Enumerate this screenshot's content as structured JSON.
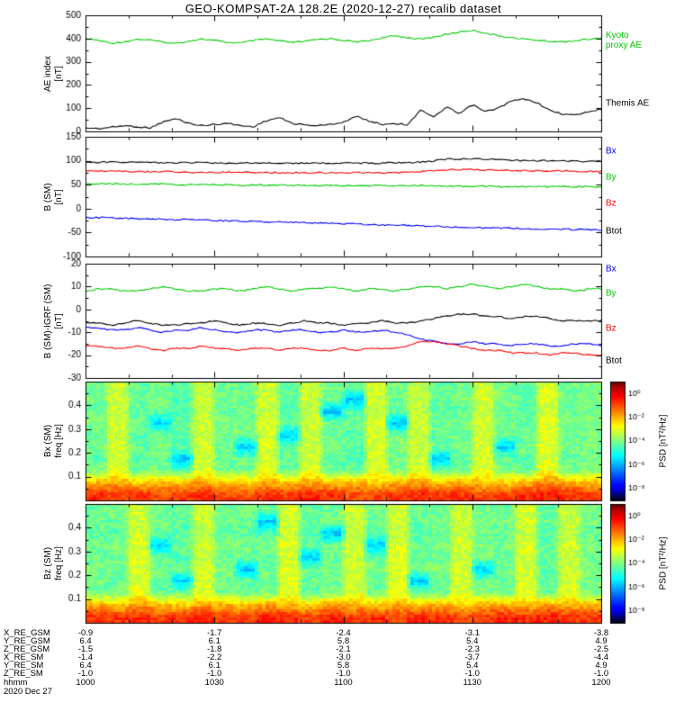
{
  "title": "GEO-KOMPSAT-2A 128.2E (2020-12-27) recalib dataset",
  "hhmm_label": "hhmm",
  "date_label": "2020 Dec 27",
  "time_ticks": [
    "1000",
    "1030",
    "1100",
    "1130",
    "1200"
  ],
  "coord_rows": [
    {
      "label": "X_RE_GSM",
      "values": [
        "-0.9",
        "-1.7",
        "-2.4",
        "-3.1",
        "-3.8"
      ]
    },
    {
      "label": "Y_RE_GSM",
      "values": [
        "6.4",
        "6.1",
        "5.8",
        "5.4",
        "4.9"
      ]
    },
    {
      "label": "Z_RE_GSM",
      "values": [
        "-1.5",
        "-1.8",
        "-2.1",
        "-2.3",
        "-2.5"
      ]
    },
    {
      "label": "X_RE_SM",
      "values": [
        "-1.4",
        "-2.2",
        "-3.0",
        "-3.7",
        "-4.4"
      ]
    },
    {
      "label": "Y_RE_SM",
      "values": [
        "6.4",
        "6.1",
        "5.8",
        "5.4",
        "4.9"
      ]
    },
    {
      "label": "Z_RE_SM",
      "values": [
        "-1.0",
        "-1.0",
        "-1.0",
        "-1.0",
        "-1.0"
      ]
    }
  ],
  "chart_data": [
    {
      "type": "line",
      "id": "ae-index",
      "ylabel_lines": [
        "AE index",
        "[nT]"
      ],
      "ylim": [
        0,
        500
      ],
      "yticks": [
        0,
        100,
        200,
        300,
        400,
        500
      ],
      "x_range_hhmm": [
        "1000",
        "1200"
      ],
      "series": [
        {
          "name": "Kyoto proxy AE",
          "label_lines": [
            "Kyoto",
            "proxy AE"
          ],
          "color": "#00cc00",
          "values": [
            400,
            392,
            380,
            386,
            397,
            394,
            384,
            379,
            389,
            398,
            392,
            383,
            381,
            391,
            398,
            390,
            383,
            387,
            396,
            400,
            392,
            385,
            391,
            403,
            412,
            404,
            397,
            406,
            418,
            428,
            436,
            424,
            412,
            404,
            398,
            393,
            388,
            386,
            391,
            397,
            401
          ]
        },
        {
          "name": "Themis AE",
          "label_lines": [
            "Themis AE"
          ],
          "color": "#000000",
          "values": [
            15,
            12,
            18,
            25,
            20,
            15,
            40,
            55,
            35,
            25,
            30,
            35,
            25,
            20,
            45,
            60,
            35,
            28,
            25,
            30,
            40,
            65,
            45,
            30,
            35,
            28,
            95,
            60,
            105,
            75,
            115,
            85,
            100,
            130,
            140,
            125,
            90,
            75,
            70,
            85,
            95
          ]
        }
      ]
    },
    {
      "type": "line",
      "id": "b-sm",
      "ylabel_lines": [
        "B (SM)",
        "[nT]"
      ],
      "ylim": [
        -100,
        150
      ],
      "yticks": [
        -100,
        -50,
        0,
        50,
        100,
        150
      ],
      "series": [
        {
          "name": "Bx",
          "color": "#0000ff",
          "values": [
            -18,
            -19,
            -19,
            -20,
            -21,
            -21,
            -22,
            -23,
            -23,
            -24,
            -25,
            -25,
            -26,
            -27,
            -27,
            -28,
            -29,
            -29,
            -30,
            -31,
            -31,
            -32,
            -33,
            -34,
            -34,
            -35,
            -36,
            -37,
            -38,
            -38,
            -39,
            -40,
            -40,
            -41,
            -42,
            -42,
            -43,
            -43,
            -44,
            -44,
            -45
          ]
        },
        {
          "name": "By",
          "color": "#00cc00",
          "values": [
            52,
            52,
            52,
            51,
            51,
            51,
            51,
            50,
            50,
            50,
            50,
            50,
            49,
            49,
            49,
            49,
            49,
            49,
            48,
            48,
            48,
            48,
            48,
            48,
            48,
            48,
            48,
            47,
            47,
            47,
            47,
            47,
            46,
            46,
            46,
            46,
            46,
            46,
            46,
            46,
            46
          ]
        },
        {
          "name": "Bz",
          "color": "#ff0000",
          "values": [
            78,
            78,
            78,
            78,
            77,
            77,
            77,
            77,
            76,
            76,
            76,
            76,
            76,
            75,
            75,
            75,
            75,
            75,
            75,
            75,
            75,
            75,
            75,
            75,
            75,
            76,
            77,
            79,
            81,
            82,
            82,
            81,
            80,
            80,
            79,
            79,
            79,
            79,
            78,
            78,
            78
          ]
        },
        {
          "name": "Btot",
          "color": "#000000",
          "values": [
            97,
            97,
            97,
            97,
            97,
            96,
            96,
            96,
            96,
            96,
            95,
            95,
            95,
            95,
            95,
            95,
            95,
            95,
            95,
            95,
            95,
            95,
            95,
            95,
            96,
            96,
            97,
            100,
            103,
            104,
            104,
            103,
            102,
            101,
            100,
            100,
            100,
            100,
            99,
            99,
            99
          ]
        }
      ]
    },
    {
      "type": "line",
      "id": "b-sm-igrf",
      "ylabel_lines": [
        "B (SM)-IGRF (SM)",
        "[nT]"
      ],
      "ylim": [
        -30,
        20
      ],
      "yticks": [
        -30,
        -20,
        -10,
        0,
        10,
        20
      ],
      "series": [
        {
          "name": "Bx",
          "color": "#0000ff",
          "values": [
            -8,
            -8,
            -9,
            -9,
            -8,
            -9,
            -10,
            -9,
            -9,
            -8,
            -9,
            -10,
            -10,
            -9,
            -9,
            -10,
            -9,
            -9,
            -10,
            -10,
            -9,
            -10,
            -10,
            -9,
            -10,
            -11,
            -13,
            -14,
            -15,
            -15,
            -14,
            -15,
            -15,
            -16,
            -15,
            -15,
            -16,
            -16,
            -15,
            -15,
            -16
          ]
        },
        {
          "name": "By",
          "color": "#00cc00",
          "values": [
            8,
            9,
            9,
            8,
            8,
            9,
            10,
            9,
            8,
            8,
            9,
            9,
            8,
            9,
            10,
            9,
            8,
            9,
            9,
            10,
            9,
            8,
            9,
            9,
            8,
            9,
            10,
            10,
            9,
            10,
            11,
            10,
            9,
            10,
            11,
            10,
            9,
            9,
            8,
            9,
            9
          ]
        },
        {
          "name": "Bz",
          "color": "#ff0000",
          "values": [
            -16,
            -16,
            -17,
            -17,
            -16,
            -17,
            -18,
            -17,
            -17,
            -16,
            -17,
            -17,
            -18,
            -17,
            -17,
            -18,
            -17,
            -17,
            -18,
            -18,
            -17,
            -18,
            -17,
            -17,
            -17,
            -16,
            -14,
            -14,
            -15,
            -16,
            -17,
            -18,
            -18,
            -19,
            -19,
            -19,
            -20,
            -19,
            -19,
            -20,
            -20
          ]
        },
        {
          "name": "Btot",
          "color": "#000000",
          "values": [
            -6,
            -6,
            -7,
            -6,
            -5,
            -6,
            -7,
            -7,
            -6,
            -6,
            -5,
            -6,
            -7,
            -6,
            -6,
            -7,
            -6,
            -5,
            -6,
            -6,
            -7,
            -6,
            -6,
            -5,
            -6,
            -6,
            -5,
            -4,
            -3,
            -2,
            -2,
            -3,
            -3,
            -4,
            -3,
            -3,
            -4,
            -5,
            -5,
            -5,
            -5
          ]
        }
      ]
    },
    {
      "type": "heatmap",
      "id": "bx-psd",
      "ylabel_lines": [
        "Bx (SM)",
        "freq [Hz]"
      ],
      "ylim": [
        0,
        0.5
      ],
      "yticks": [
        0.1,
        0.2,
        0.3,
        0.4
      ],
      "colorbar": {
        "label": "PSD [nT²/Hz]",
        "tick_labels": [
          "10⁰",
          "10⁻²",
          "10⁻⁴",
          "10⁻⁶",
          "10⁻⁸"
        ],
        "tick_values": [
          0,
          -2,
          -4,
          -6,
          -8
        ],
        "log_min": -9,
        "log_max": 1
      },
      "log10_psd": [
        [
          -0.6,
          -0.9,
          -0.7,
          -1.0,
          -0.8,
          -0.6,
          -0.9,
          -1.0,
          -0.7,
          -0.8,
          -0.6,
          -0.7,
          -1.0,
          -0.9,
          -0.7,
          -0.6,
          -0.8,
          -0.7,
          -1.0,
          -0.8,
          -0.6,
          -0.5,
          -0.7,
          -0.8
        ],
        [
          -2.1,
          -1.9,
          -2.3,
          -2.0,
          -2.2,
          -1.9,
          -2.1,
          -2.3,
          -2.0,
          -2.1,
          -1.9,
          -2.2,
          -2.0,
          -2.3,
          -2.1,
          -1.9,
          -2.2,
          -2.0,
          -2.1,
          -2.3,
          -1.9,
          -1.7,
          -2.0,
          -2.1
        ],
        [
          -4.0,
          -3.0,
          -4.2,
          -4.1,
          -4.3,
          -3.1,
          -4.1,
          -4.0,
          -3.0,
          -4.2,
          -3.1,
          -4.1,
          -4.3,
          -3.0,
          -4.0,
          -3.1,
          -4.2,
          -4.1,
          -3.0,
          -4.0,
          -4.2,
          -2.9,
          -4.1,
          -3.9
        ],
        [
          -4.3,
          -3.2,
          -4.4,
          -4.2,
          -5.8,
          -3.3,
          -4.3,
          -4.2,
          -3.2,
          -4.4,
          -3.3,
          -4.3,
          -4.5,
          -3.2,
          -4.2,
          -3.3,
          -5.7,
          -4.3,
          -3.2,
          -4.2,
          -4.4,
          -3.1,
          -4.3,
          -4.1
        ],
        [
          -4.1,
          -3.1,
          -4.2,
          -4.0,
          -4.3,
          -3.2,
          -4.1,
          -5.8,
          -3.1,
          -4.2,
          -3.2,
          -4.1,
          -4.3,
          -3.1,
          -4.0,
          -3.2,
          -4.2,
          -4.1,
          -3.1,
          -5.7,
          -4.2,
          -3.0,
          -4.1,
          -4.0
        ],
        [
          -4.2,
          -3.2,
          -4.4,
          -4.1,
          -4.4,
          -3.3,
          -4.2,
          -4.1,
          -3.2,
          -5.8,
          -3.3,
          -4.2,
          -4.4,
          -3.2,
          -4.1,
          -3.3,
          -4.3,
          -4.2,
          -3.2,
          -4.1,
          -4.3,
          -3.1,
          -4.2,
          -4.0
        ],
        [
          -4.0,
          -3.1,
          -4.2,
          -5.7,
          -4.3,
          -3.2,
          -4.0,
          -4.1,
          -3.1,
          -4.2,
          -3.2,
          -4.1,
          -4.2,
          -3.1,
          -5.8,
          -3.2,
          -4.2,
          -4.0,
          -3.1,
          -4.1,
          -4.2,
          -3.0,
          -4.0,
          -3.9
        ],
        [
          -4.3,
          -3.3,
          -4.4,
          -4.2,
          -4.5,
          -3.4,
          -4.3,
          -4.2,
          -3.3,
          -4.4,
          -3.4,
          -5.9,
          -4.4,
          -3.3,
          -4.2,
          -3.4,
          -4.4,
          -4.3,
          -3.3,
          -4.2,
          -4.4,
          -3.2,
          -4.3,
          -4.1
        ],
        [
          -4.1,
          -3.2,
          -4.3,
          -4.0,
          -4.4,
          -3.3,
          -4.1,
          -4.2,
          -3.2,
          -4.3,
          -3.3,
          -4.2,
          -5.8,
          -3.2,
          -4.1,
          -3.3,
          -4.3,
          -4.1,
          -3.2,
          -4.1,
          -4.3,
          -3.1,
          -4.1,
          -4.0
        ],
        [
          -4.2,
          -3.2,
          -4.3,
          -4.1,
          -4.4,
          -3.3,
          -4.2,
          -4.1,
          -3.2,
          -4.3,
          -3.3,
          -4.2,
          -4.4,
          -3.2,
          -4.1,
          -3.3,
          -4.3,
          -4.2,
          -3.2,
          -4.1,
          -4.3,
          -3.1,
          -4.2,
          -4.0
        ]
      ]
    },
    {
      "type": "heatmap",
      "id": "bz-psd",
      "ylabel_lines": [
        "Bz (SM)",
        "freq [Hz]"
      ],
      "ylim": [
        0,
        0.5
      ],
      "yticks": [
        0.1,
        0.2,
        0.3,
        0.4
      ],
      "colorbar": {
        "label": "PSD [nT²/Hz]",
        "tick_labels": [
          "10⁰",
          "10⁻²",
          "10⁻⁴",
          "10⁻⁶",
          "10⁻⁸"
        ],
        "tick_values": [
          0,
          -2,
          -4,
          -6,
          -8
        ],
        "log_min": -9,
        "log_max": 1
      },
      "log10_psd": [
        [
          -0.7,
          -0.8,
          -0.6,
          -0.9,
          -0.7,
          -0.5,
          -0.8,
          -0.9,
          -0.6,
          -0.7,
          -0.9,
          -0.6,
          -0.8,
          -0.7,
          -0.9,
          -0.6,
          -0.7,
          -0.9,
          -0.8,
          -0.6,
          -0.7,
          -0.5,
          -0.8,
          -0.7
        ],
        [
          -2.0,
          -2.2,
          -1.8,
          -2.1,
          -2.3,
          -1.9,
          -2.0,
          -2.2,
          -1.9,
          -2.1,
          -2.3,
          -1.8,
          -2.0,
          -2.2,
          -1.9,
          -2.1,
          -2.0,
          -2.3,
          -1.9,
          -2.0,
          -2.2,
          -1.8,
          -2.1,
          -2.0
        ],
        [
          -4.1,
          -4.0,
          -3.0,
          -4.2,
          -4.1,
          -3.1,
          -4.0,
          -4.2,
          -4.1,
          -3.0,
          -4.2,
          -4.0,
          -3.1,
          -4.1,
          -3.0,
          -4.2,
          -4.1,
          -3.1,
          -4.0,
          -4.1,
          -3.0,
          -4.2,
          -3.1,
          -4.0
        ],
        [
          -4.2,
          -4.3,
          -3.1,
          -4.3,
          -5.8,
          -3.2,
          -4.2,
          -4.3,
          -4.2,
          -3.1,
          -4.3,
          -4.2,
          -3.2,
          -4.2,
          -3.1,
          -5.7,
          -4.2,
          -3.2,
          -4.1,
          -4.2,
          -3.1,
          -4.3,
          -3.2,
          -4.1
        ],
        [
          -4.0,
          -4.1,
          -3.1,
          -4.1,
          -4.2,
          -3.2,
          -4.0,
          -5.8,
          -4.1,
          -3.1,
          -4.2,
          -4.1,
          -3.2,
          -4.0,
          -3.1,
          -4.1,
          -4.0,
          -3.2,
          -5.7,
          -4.1,
          -3.1,
          -4.2,
          -3.2,
          -4.0
        ],
        [
          -4.2,
          -4.3,
          -3.2,
          -4.2,
          -4.4,
          -3.3,
          -4.2,
          -4.2,
          -4.3,
          -3.2,
          -5.8,
          -4.2,
          -3.3,
          -4.2,
          -3.2,
          -4.3,
          -4.2,
          -3.3,
          -4.1,
          -4.2,
          -3.2,
          -4.3,
          -3.3,
          -4.1
        ],
        [
          -4.1,
          -4.0,
          -3.1,
          -5.7,
          -4.2,
          -3.2,
          -4.1,
          -4.1,
          -4.0,
          -3.1,
          -4.2,
          -4.1,
          -3.2,
          -5.8,
          -3.1,
          -4.1,
          -4.0,
          -3.2,
          -4.0,
          -4.1,
          -3.1,
          -4.2,
          -3.2,
          -4.0
        ],
        [
          -4.3,
          -4.4,
          -3.3,
          -4.3,
          -4.5,
          -3.4,
          -4.3,
          -4.3,
          -4.4,
          -3.3,
          -4.4,
          -5.9,
          -3.4,
          -4.3,
          -3.3,
          -4.4,
          -4.3,
          -3.4,
          -4.2,
          -4.3,
          -3.3,
          -4.4,
          -3.4,
          -4.2
        ],
        [
          -4.1,
          -4.2,
          -3.2,
          -4.1,
          -4.3,
          -3.3,
          -4.1,
          -4.2,
          -5.8,
          -3.2,
          -4.2,
          -4.1,
          -3.3,
          -4.1,
          -3.2,
          -4.2,
          -4.1,
          -3.3,
          -4.0,
          -4.1,
          -3.2,
          -4.2,
          -3.3,
          -4.0
        ],
        [
          -4.2,
          -4.1,
          -3.2,
          -4.2,
          -4.3,
          -3.3,
          -4.2,
          -4.1,
          -4.2,
          -3.2,
          -4.3,
          -4.2,
          -3.3,
          -4.2,
          -3.2,
          -4.2,
          -4.1,
          -3.3,
          -4.1,
          -4.2,
          -3.2,
          -4.3,
          -3.3,
          -4.1
        ]
      ]
    }
  ]
}
